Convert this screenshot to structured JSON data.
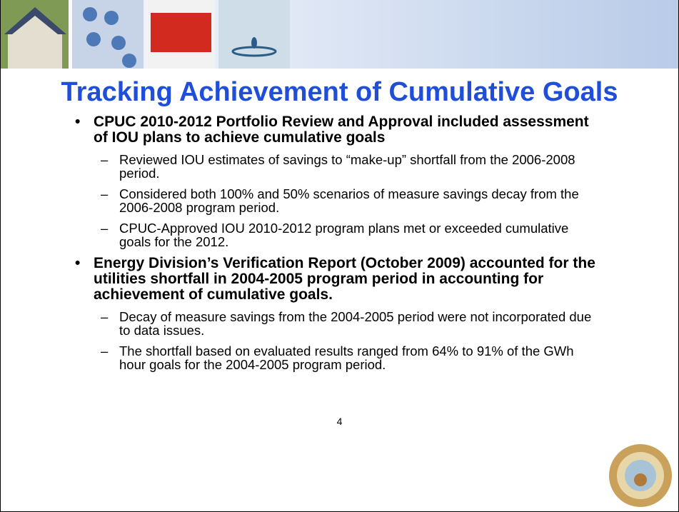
{
  "title": "Tracking Achievement of Cumulative Goals",
  "bullets": [
    {
      "text": "CPUC 2010-2012 Portfolio Review and Approval included assessment of IOU plans to achieve cumulative goals",
      "subs": [
        "Reviewed IOU estimates of savings to “make-up” shortfall from the 2006-2008 period.",
        "Considered both 100% and 50% scenarios of measure savings decay from the 2006-2008 program period.",
        "CPUC-Approved IOU 2010-2012 program plans met or exceeded cumulative goals for the 2012."
      ]
    },
    {
      "text": "Energy Division’s Verification Report (October 2009) accounted for the utilities shortfall in 2004-2005 program period in accounting for achievement of cumulative goals.",
      "subs": [
        "Decay of measure savings from the 2004-2005 period were not incorporated due to data issues.",
        "The shortfall based on evaluated results ranged from 64% to 91% of the GWh hour goals for the 2004-2005 program period."
      ]
    }
  ],
  "page_number": "4"
}
